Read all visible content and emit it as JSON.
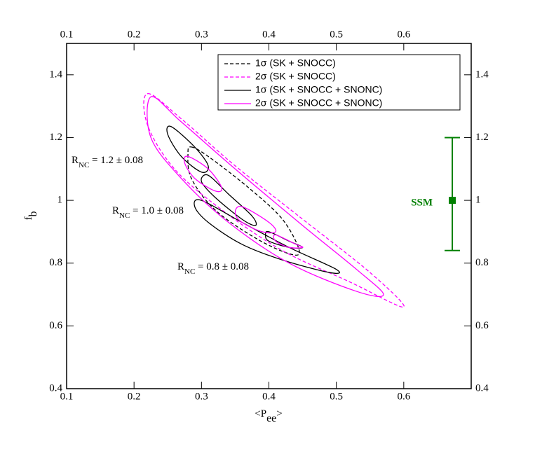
{
  "chart_data": {
    "type": "contour",
    "x_label": {
      "main": "<P",
      "sub": "ee",
      "end": ">"
    },
    "y_label": {
      "main": "f",
      "sub": "b"
    },
    "xlim": [
      0.1,
      0.7
    ],
    "ylim": [
      0.4,
      1.5
    ],
    "xticks": [
      0.1,
      0.2,
      0.3,
      0.4,
      0.5,
      0.6
    ],
    "yticks": [
      0.4,
      0.6,
      0.8,
      1,
      1.2,
      1.4
    ],
    "legend": "upper right",
    "series": [
      {
        "name": "1σ (SK + SNOCC)",
        "color": "#000000",
        "dashed": true,
        "x": [
          0.285,
          0.31,
          0.37,
          0.42,
          0.445,
          0.43,
          0.38,
          0.32,
          0.285,
          0.28
        ],
        "y": [
          1.17,
          1.14,
          1.04,
          0.94,
          0.84,
          0.83,
          0.88,
          0.97,
          1.07,
          1.15
        ]
      },
      {
        "name": "2σ (SK + SNOCC)",
        "color": "#ff00ff",
        "dashed": true,
        "x": [
          0.22,
          0.27,
          0.35,
          0.45,
          0.55,
          0.6,
          0.52,
          0.42,
          0.33,
          0.26,
          0.22
        ],
        "y": [
          1.34,
          1.26,
          1.11,
          0.94,
          0.77,
          0.66,
          0.74,
          0.84,
          0.97,
          1.1,
          1.24
        ]
      },
      {
        "name": "1σ (SK + SNOCC + SNONC)",
        "color": "#000000",
        "dashed": false,
        "x": [
          0.255,
          0.29,
          0.31,
          0.3,
          0.27,
          0.25,
          null,
          0.31,
          0.34,
          0.375,
          0.38,
          0.36,
          0.32,
          0.3,
          null,
          0.3,
          0.36,
          0.43,
          0.5,
          0.49,
          0.42,
          0.36,
          0.31,
          0.29,
          null,
          0.4,
          0.43,
          0.45,
          0.43,
          0.4,
          0.395
        ],
        "y": [
          1.235,
          1.17,
          1.11,
          1.09,
          1.14,
          1.21,
          null,
          1.08,
          1.02,
          0.95,
          0.92,
          0.94,
          1.01,
          1.06,
          null,
          1.0,
          0.93,
          0.85,
          0.78,
          0.77,
          0.81,
          0.86,
          0.93,
          0.98,
          null,
          0.9,
          0.87,
          0.85,
          0.85,
          0.87,
          0.89
        ]
      },
      {
        "name": "2σ (SK + SNOCC + SNONC)",
        "color": "#ff00ff",
        "dashed": false,
        "x": [
          0.225,
          0.27,
          0.35,
          0.45,
          0.53,
          0.57,
          0.53,
          0.43,
          0.34,
          0.27,
          0.225,
          null,
          0.28,
          0.31,
          0.33,
          0.32,
          0.29,
          0.275,
          null,
          0.36,
          0.4,
          0.41,
          0.39,
          0.36,
          0.35,
          null,
          0.41,
          0.44,
          0.45,
          0.43,
          0.41
        ],
        "y": [
          1.33,
          1.25,
          1.1,
          0.92,
          0.78,
          0.7,
          0.71,
          0.8,
          0.93,
          1.07,
          1.2,
          null,
          1.14,
          1.1,
          1.04,
          1.03,
          1.07,
          1.12,
          null,
          0.98,
          0.93,
          0.9,
          0.9,
          0.93,
          0.96,
          null,
          0.89,
          0.86,
          0.85,
          0.85,
          0.87
        ]
      }
    ],
    "annotations": [
      {
        "main": "R",
        "sub": "NC",
        "rest": " = 1.2 ± 0.08"
      },
      {
        "main": "R",
        "sub": "NC",
        "rest": " = 1.0 ± 0.08"
      },
      {
        "main": "R",
        "sub": "NC",
        "rest": " = 0.8 ± 0.08"
      }
    ],
    "ssm": {
      "label": "SSM",
      "x": 0.672,
      "y": 1,
      "ylow": 0.84,
      "yhigh": 1.2,
      "color": "#008000"
    }
  }
}
